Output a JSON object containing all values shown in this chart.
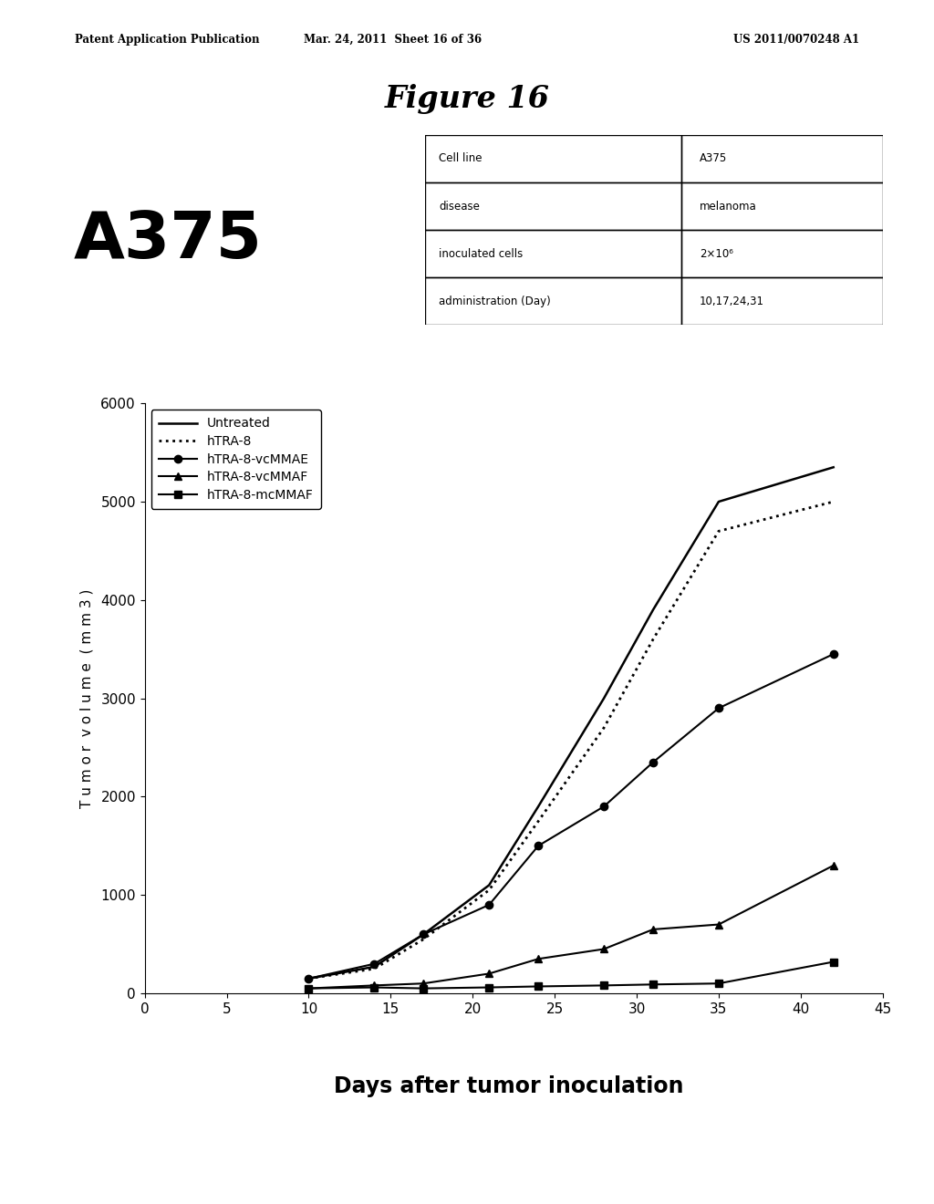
{
  "title": "Figure 16",
  "patent_header_left": "Patent Application Publication",
  "patent_header_mid": "Mar. 24, 2011  Sheet 16 of 36",
  "patent_header_right": "US 2011/0070248 A1",
  "cell_label": "A375",
  "table": {
    "rows": [
      [
        "Cell line",
        "A375"
      ],
      [
        "disease",
        "melanoma"
      ],
      [
        "inoculated cells",
        "2×10⁶"
      ],
      [
        "administration (Day)",
        "10,17,24,31"
      ]
    ]
  },
  "xlabel": "Days after tumor inoculation",
  "ylabel": "T u m o r  v o l u m e  ( m m 3 )",
  "xlim": [
    0,
    45
  ],
  "ylim": [
    0,
    6000
  ],
  "xticks": [
    0,
    5,
    10,
    15,
    20,
    25,
    30,
    35,
    40,
    45
  ],
  "yticks": [
    0,
    1000,
    2000,
    3000,
    4000,
    5000,
    6000
  ],
  "series": [
    {
      "label": "Untreated",
      "linestyle": "-",
      "marker": "none",
      "color": "#000000",
      "linewidth": 1.8,
      "x": [
        10,
        14,
        17,
        21,
        24,
        28,
        31,
        35,
        42
      ],
      "y": [
        150,
        270,
        600,
        1100,
        1900,
        3000,
        3900,
        5000,
        5350
      ]
    },
    {
      "label": "hTRA-8",
      "linestyle": ":",
      "marker": "none",
      "color": "#000000",
      "linewidth": 2.0,
      "x": [
        10,
        14,
        17,
        21,
        24,
        28,
        31,
        35,
        42
      ],
      "y": [
        150,
        250,
        550,
        1050,
        1750,
        2700,
        3600,
        4700,
        5000
      ]
    },
    {
      "label": "hTRA-8-vcMMAE",
      "linestyle": "-",
      "marker": "o",
      "color": "#000000",
      "linewidth": 1.5,
      "markersize": 6,
      "x": [
        10,
        14,
        17,
        21,
        24,
        28,
        31,
        35,
        42
      ],
      "y": [
        150,
        300,
        600,
        900,
        1500,
        1900,
        2350,
        2900,
        3450
      ]
    },
    {
      "label": "hTRA-8-vcMMAF",
      "linestyle": "-",
      "marker": "^",
      "color": "#000000",
      "linewidth": 1.5,
      "markersize": 6,
      "x": [
        10,
        14,
        17,
        21,
        24,
        28,
        31,
        35,
        42
      ],
      "y": [
        50,
        80,
        100,
        200,
        350,
        450,
        650,
        700,
        1300
      ]
    },
    {
      "label": "hTRA-8-mcMMAF",
      "linestyle": "-",
      "marker": "s",
      "color": "#000000",
      "linewidth": 1.5,
      "markersize": 6,
      "x": [
        10,
        14,
        17,
        21,
        24,
        28,
        31,
        35,
        42
      ],
      "y": [
        50,
        60,
        50,
        60,
        70,
        80,
        90,
        100,
        320
      ]
    }
  ],
  "background_color": "#ffffff",
  "fig_title_fontsize": 24,
  "tick_fontsize": 11,
  "legend_fontsize": 10,
  "cell_label_fontsize": 52
}
